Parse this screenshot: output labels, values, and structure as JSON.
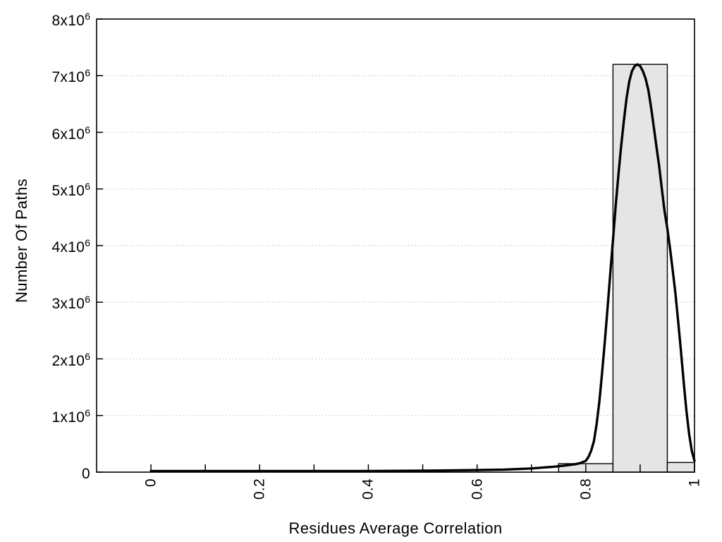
{
  "chart_data": {
    "type": "bar",
    "subtype": "histogram_with_fit_curve",
    "title": "",
    "xlabel": "Residues Average Correlation",
    "ylabel": "Number Of Paths",
    "xlim": [
      -0.1,
      1.0
    ],
    "ylim": [
      0,
      8000000
    ],
    "grid": {
      "horizontal": true,
      "vertical": false,
      "style": "dotted",
      "color": "#c8c8c8"
    },
    "legend": "none",
    "colors": {
      "bar_fill": "#e5e5e5",
      "bar_edge": "#000000",
      "curve": "#000000",
      "frame": "#000000",
      "text": "#000000",
      "background": "#ffffff"
    },
    "x_ticks": [
      {
        "value": 0,
        "label": "0"
      },
      {
        "value": 0.1,
        "label": ""
      },
      {
        "value": 0.2,
        "label": "0.2"
      },
      {
        "value": 0.3,
        "label": ""
      },
      {
        "value": 0.4,
        "label": "0.4"
      },
      {
        "value": 0.5,
        "label": ""
      },
      {
        "value": 0.6,
        "label": "0.6"
      },
      {
        "value": 0.7,
        "label": ""
      },
      {
        "value": 0.8,
        "label": "0.8"
      },
      {
        "value": 0.9,
        "label": ""
      },
      {
        "value": 1.0,
        "label": "1"
      }
    ],
    "y_ticks": [
      {
        "value": 0,
        "base": "0",
        "exp": ""
      },
      {
        "value": 1000000,
        "base": "1x10",
        "exp": "6"
      },
      {
        "value": 2000000,
        "base": "2x10",
        "exp": "6"
      },
      {
        "value": 3000000,
        "base": "3x10",
        "exp": "6"
      },
      {
        "value": 4000000,
        "base": "4x10",
        "exp": "6"
      },
      {
        "value": 5000000,
        "base": "5x10",
        "exp": "6"
      },
      {
        "value": 6000000,
        "base": "6x10",
        "exp": "6"
      },
      {
        "value": 7000000,
        "base": "7x10",
        "exp": "6"
      },
      {
        "value": 8000000,
        "base": "8x10",
        "exp": "6"
      }
    ],
    "bars": [
      {
        "x_start": 0.75,
        "x_end": 0.85,
        "count": 150000
      },
      {
        "x_start": 0.85,
        "x_end": 0.95,
        "count": 7200000
      },
      {
        "x_start": 0.95,
        "x_end": 1.0,
        "count": 170000
      }
    ],
    "curve_points": [
      [
        0.0,
        20000
      ],
      [
        0.05,
        20000
      ],
      [
        0.1,
        20000
      ],
      [
        0.15,
        20000
      ],
      [
        0.2,
        20000
      ],
      [
        0.25,
        20000
      ],
      [
        0.3,
        20000
      ],
      [
        0.35,
        20000
      ],
      [
        0.4,
        20000
      ],
      [
        0.45,
        22000
      ],
      [
        0.5,
        25000
      ],
      [
        0.55,
        30000
      ],
      [
        0.6,
        36000
      ],
      [
        0.65,
        45000
      ],
      [
        0.7,
        65000
      ],
      [
        0.72,
        80000
      ],
      [
        0.74,
        95000
      ],
      [
        0.76,
        115000
      ],
      [
        0.78,
        140000
      ],
      [
        0.79,
        160000
      ],
      [
        0.8,
        200000
      ],
      [
        0.805,
        270000
      ],
      [
        0.81,
        380000
      ],
      [
        0.815,
        550000
      ],
      [
        0.82,
        850000
      ],
      [
        0.825,
        1250000
      ],
      [
        0.83,
        1750000
      ],
      [
        0.835,
        2300000
      ],
      [
        0.84,
        2900000
      ],
      [
        0.845,
        3500000
      ],
      [
        0.85,
        4100000
      ],
      [
        0.855,
        4700000
      ],
      [
        0.86,
        5250000
      ],
      [
        0.865,
        5750000
      ],
      [
        0.87,
        6200000
      ],
      [
        0.875,
        6600000
      ],
      [
        0.88,
        6900000
      ],
      [
        0.885,
        7080000
      ],
      [
        0.89,
        7170000
      ],
      [
        0.895,
        7200000
      ],
      [
        0.9,
        7170000
      ],
      [
        0.905,
        7080000
      ],
      [
        0.91,
        6950000
      ],
      [
        0.915,
        6750000
      ],
      [
        0.92,
        6450000
      ],
      [
        0.925,
        6100000
      ],
      [
        0.93,
        5750000
      ],
      [
        0.935,
        5400000
      ],
      [
        0.94,
        5000000
      ],
      [
        0.945,
        4600000
      ],
      [
        0.95,
        4300000
      ],
      [
        0.955,
        3950000
      ],
      [
        0.96,
        3550000
      ],
      [
        0.965,
        3150000
      ],
      [
        0.97,
        2650000
      ],
      [
        0.975,
        2150000
      ],
      [
        0.98,
        1600000
      ],
      [
        0.985,
        1100000
      ],
      [
        0.99,
        680000
      ],
      [
        0.995,
        380000
      ],
      [
        1.0,
        200000
      ]
    ]
  }
}
